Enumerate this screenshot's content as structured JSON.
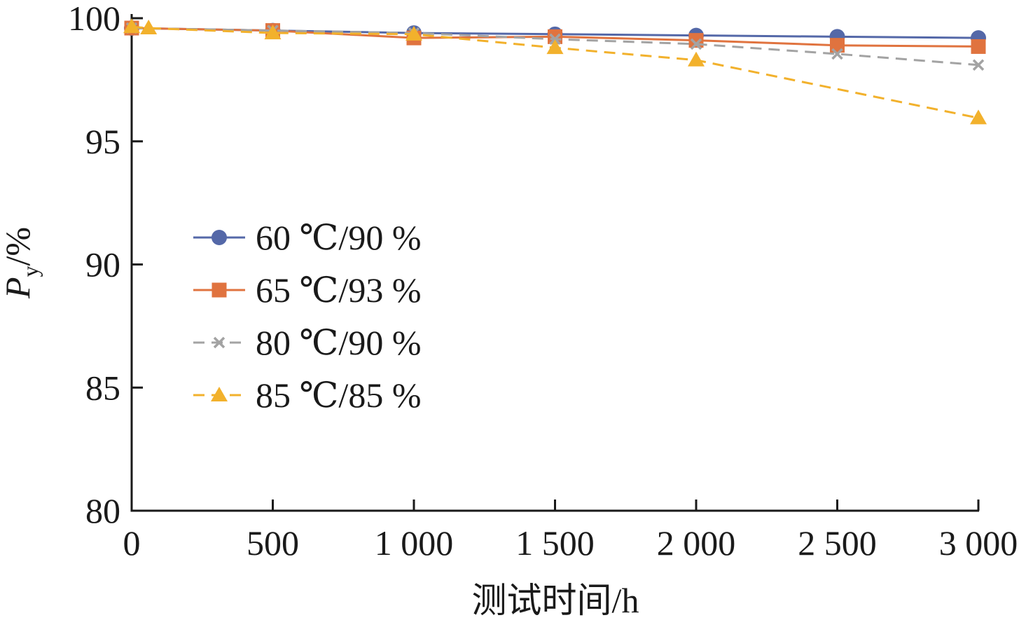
{
  "chart_data": {
    "type": "line",
    "title": "",
    "xlabel": "测试时间/h",
    "ylabel_main": "P",
    "ylabel_sub": "y",
    "ylabel_unit": "/%",
    "xlim": [
      0,
      3000
    ],
    "ylim": [
      80,
      100
    ],
    "x_ticks": [
      0,
      500,
      1000,
      1500,
      2000,
      2500,
      3000
    ],
    "x_tick_labels": [
      "0",
      "500",
      "1 000",
      "1 500",
      "2 000",
      "2 500",
      "3 000"
    ],
    "y_ticks": [
      80,
      85,
      90,
      95,
      100
    ],
    "y_tick_labels": [
      "80",
      "85",
      "90",
      "95",
      "100"
    ],
    "grid": false,
    "legend_position": "left-middle",
    "series": [
      {
        "name": "60 ℃/90 %",
        "color": "#5468a8",
        "marker": "circle",
        "dash": "solid",
        "points": [
          [
            0,
            99.6
          ],
          [
            500,
            99.5
          ],
          [
            1000,
            99.4
          ],
          [
            1500,
            99.35
          ],
          [
            2000,
            99.3
          ],
          [
            2500,
            99.25
          ],
          [
            3000,
            99.2
          ]
        ]
      },
      {
        "name": "65 ℃/93 %",
        "color": "#e0733f",
        "marker": "square",
        "dash": "solid",
        "points": [
          [
            0,
            99.6
          ],
          [
            500,
            99.5
          ],
          [
            1000,
            99.2
          ],
          [
            1500,
            99.25
          ],
          [
            2000,
            99.1
          ],
          [
            2500,
            98.9
          ],
          [
            3000,
            98.85
          ]
        ]
      },
      {
        "name": "80 ℃/90 %",
        "color": "#a3a3a3",
        "marker": "x",
        "dash": "dashed",
        "points": [
          [
            0,
            99.6
          ],
          [
            500,
            99.5
          ],
          [
            1000,
            99.4
          ],
          [
            1500,
            99.15
          ],
          [
            2000,
            98.95
          ],
          [
            2500,
            98.55
          ],
          [
            3000,
            98.1
          ]
        ]
      },
      {
        "name": "85 ℃/85 %",
        "color": "#f2b12c",
        "marker": "triangle",
        "dash": "dashed",
        "points": [
          [
            0,
            99.65
          ],
          [
            60,
            99.6
          ],
          [
            500,
            99.4
          ],
          [
            1000,
            99.35
          ],
          [
            1500,
            98.8
          ],
          [
            2000,
            98.3
          ],
          [
            3000,
            95.95
          ]
        ]
      }
    ]
  }
}
